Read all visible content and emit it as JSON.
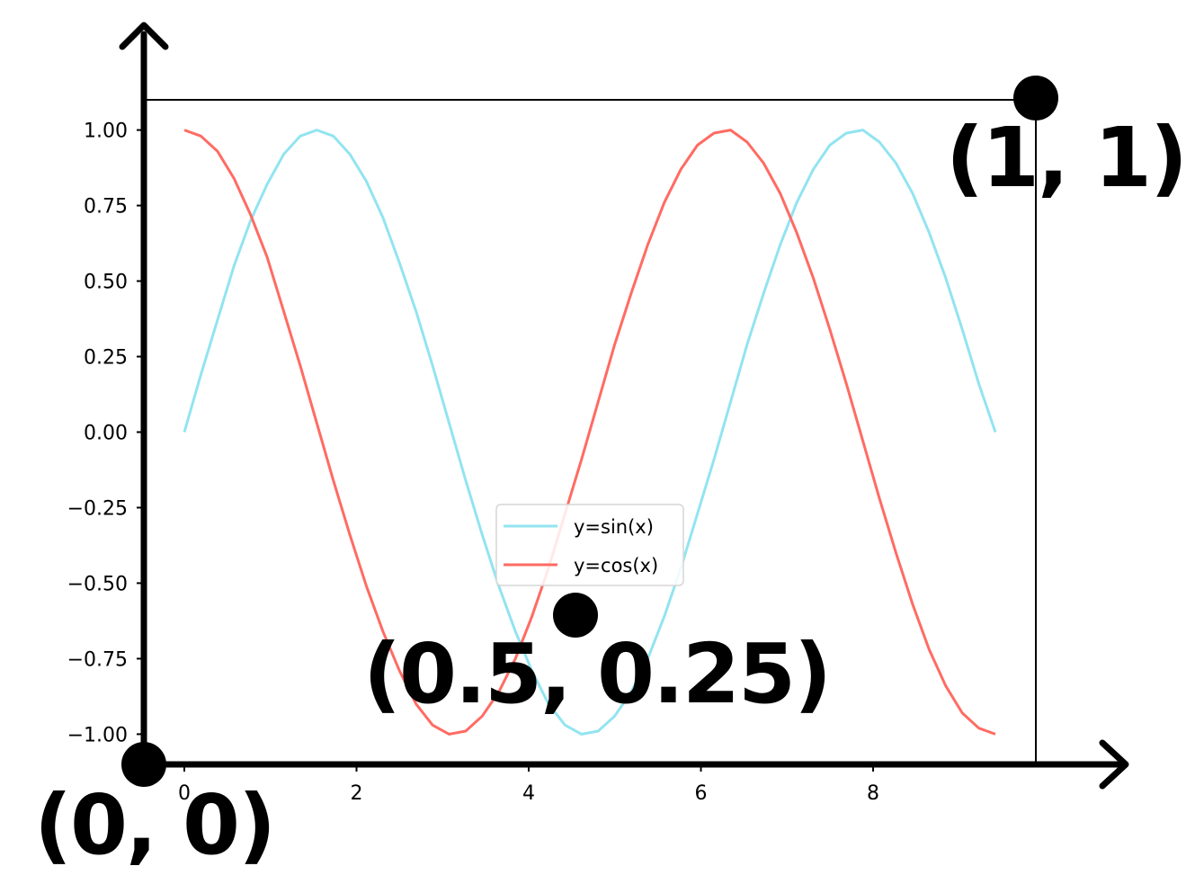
{
  "chart_data": {
    "type": "line",
    "title": "",
    "xlabel": "",
    "ylabel": "",
    "xlim": [
      -0.47,
      9.89
    ],
    "ylim": [
      -1.1,
      1.1
    ],
    "x_ticks": [
      0,
      2,
      4,
      6,
      8
    ],
    "x_tick_labels": [
      "0",
      "2",
      "4",
      "6",
      "8"
    ],
    "y_ticks": [
      1.0,
      0.75,
      0.5,
      0.25,
      0.0,
      -0.25,
      -0.5,
      -0.75,
      -1.0
    ],
    "y_tick_labels": [
      "1.00",
      "0.75",
      "0.50",
      "0.25",
      "0.00",
      "−0.25",
      "−0.50",
      "−0.75",
      "−1.00"
    ],
    "x_start": 0,
    "x_end": 9.42,
    "n_points": 50,
    "series": [
      {
        "name": "y=sin(x)",
        "color": "#92e4f0",
        "values": [
          0.0,
          0.19,
          0.37,
          0.55,
          0.7,
          0.82,
          0.92,
          0.98,
          1.0,
          0.98,
          0.92,
          0.83,
          0.71,
          0.56,
          0.4,
          0.22,
          0.03,
          -0.16,
          -0.34,
          -0.51,
          -0.66,
          -0.79,
          -0.9,
          -0.97,
          -1.0,
          -0.99,
          -0.94,
          -0.86,
          -0.75,
          -0.61,
          -0.45,
          -0.27,
          -0.09,
          0.1,
          0.29,
          0.46,
          0.62,
          0.76,
          0.87,
          0.95,
          0.99,
          1.0,
          0.96,
          0.89,
          0.79,
          0.66,
          0.51,
          0.34,
          0.16,
          0.0
        ]
      },
      {
        "name": "y=cos(x)",
        "color": "#ff6b63",
        "values": [
          1.0,
          0.98,
          0.93,
          0.84,
          0.72,
          0.58,
          0.4,
          0.22,
          0.03,
          -0.16,
          -0.34,
          -0.51,
          -0.66,
          -0.79,
          -0.9,
          -0.97,
          -1.0,
          -0.99,
          -0.94,
          -0.86,
          -0.75,
          -0.61,
          -0.45,
          -0.27,
          -0.09,
          0.1,
          0.29,
          0.46,
          0.62,
          0.76,
          0.87,
          0.95,
          0.99,
          1.0,
          0.96,
          0.89,
          0.79,
          0.66,
          0.51,
          0.34,
          0.16,
          -0.03,
          -0.22,
          -0.4,
          -0.57,
          -0.72,
          -0.84,
          -0.93,
          -0.98,
          -1.0
        ]
      }
    ],
    "legend": {
      "placement": "lower-center",
      "entries": [
        "y=sin(x)",
        "y=cos(x)"
      ]
    },
    "grid": false
  },
  "annotations": {
    "origin_label": "(0, 0)",
    "top_right_label": "(1, 1)",
    "middle_label": "(0.5, 0.25)"
  }
}
